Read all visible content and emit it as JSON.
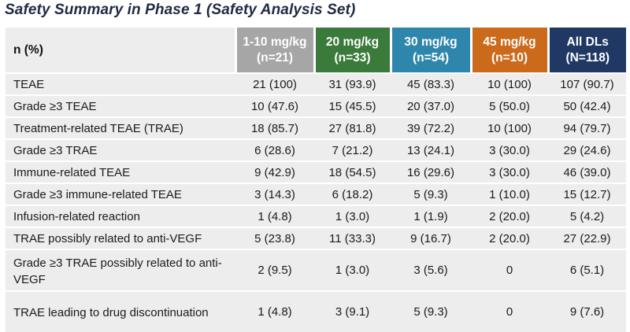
{
  "title": "Safety Summary in Phase 1 (Safety Analysis Set)",
  "header": {
    "label": "n (%)",
    "columns": [
      {
        "dose": "1-10 mg/kg",
        "n": "(n=21)",
        "color": "#a6a6a6"
      },
      {
        "dose": "20 mg/kg",
        "n": "(n=33)",
        "color": "#3a7a3a"
      },
      {
        "dose": "30 mg/kg",
        "n": "(n=54)",
        "color": "#2f86ad"
      },
      {
        "dose": "45 mg/kg",
        "n": "(n=10)",
        "color": "#cc6a1c"
      },
      {
        "dose": "All DLs",
        "n": "(N=118)",
        "color": "#1f3864"
      }
    ]
  },
  "rows": [
    {
      "label": "TEAE",
      "values": [
        "21 (100)",
        "31 (93.9)",
        "45 (83.3)",
        "10 (100)",
        "107 (90.7)"
      ]
    },
    {
      "label": "Grade ≥3 TEAE",
      "values": [
        "10 (47.6)",
        "15 (45.5)",
        "20 (37.0)",
        "5 (50.0)",
        "50 (42.4)"
      ]
    },
    {
      "label": "Treatment-related TEAE (TRAE)",
      "values": [
        "18 (85.7)",
        "27 (81.8)",
        "39 (72.2)",
        "10 (100)",
        "94 (79.7)"
      ]
    },
    {
      "label": "Grade ≥3 TRAE",
      "values": [
        "6 (28.6)",
        "7 (21.2)",
        "13 (24.1)",
        "3 (30.0)",
        "29 (24.6)"
      ]
    },
    {
      "label": "Immune-related TEAE",
      "values": [
        "9 (42.9)",
        "18 (54.5)",
        "16 (29.6)",
        "3 (30.0)",
        "46 (39.0)"
      ]
    },
    {
      "label": "Grade ≥3 immune-related TEAE",
      "values": [
        "3 (14.3)",
        "6 (18.2)",
        "5 (9.3)",
        "1 (10.0)",
        "15 (12.7)"
      ]
    },
    {
      "label": "Infusion-related reaction",
      "values": [
        "1 (4.8)",
        "1 (3.0)",
        "1 (1.9)",
        "2 (20.0)",
        "5 (4.2)"
      ]
    },
    {
      "label": "TRAE possibly related to anti-VEGF",
      "values": [
        "5 (23.8)",
        "11 (33.3)",
        "9 (16.7)",
        "2 (20.0)",
        "27 (22.9)"
      ]
    },
    {
      "label": "Grade ≥3 TRAE possibly related to anti-VEGF",
      "values": [
        "2 (9.5)",
        "1 (3.0)",
        "3 (5.6)",
        "0",
        "6 (5.1)"
      ]
    },
    {
      "label": "TRAE leading to drug discontinuation",
      "values": [
        "1 (4.8)",
        "3 (9.1)",
        "5 (9.3)",
        "0",
        "9 (7.6)"
      ]
    }
  ]
}
